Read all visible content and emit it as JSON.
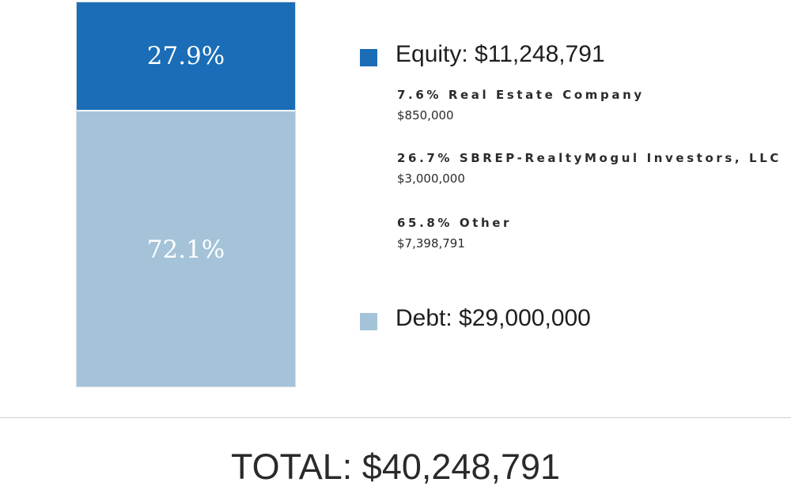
{
  "chart_data": {
    "type": "bar",
    "stacked": true,
    "categories": [
      "Equity",
      "Debt"
    ],
    "values": [
      27.9,
      72.1
    ],
    "value_labels": [
      "27.9%",
      "72.1%"
    ],
    "amounts": [
      11248791,
      29000000
    ],
    "colors": {
      "equity": "#1a6db6",
      "debt": "#a4c3d8"
    },
    "legend": [
      {
        "label": "Equity: $11,248,791"
      },
      {
        "label": "Debt: $29,000,000"
      }
    ],
    "equity_breakdown": [
      {
        "label": "7.6% Real Estate Company",
        "amount": "$850,000"
      },
      {
        "label": "26.7% SBREP-RealtyMogul Investors, LLC",
        "amount": "$3,000,000"
      },
      {
        "label": "65.8% Other",
        "amount": "$7,398,791"
      }
    ],
    "total_label": "TOTAL: $40,248,791"
  }
}
